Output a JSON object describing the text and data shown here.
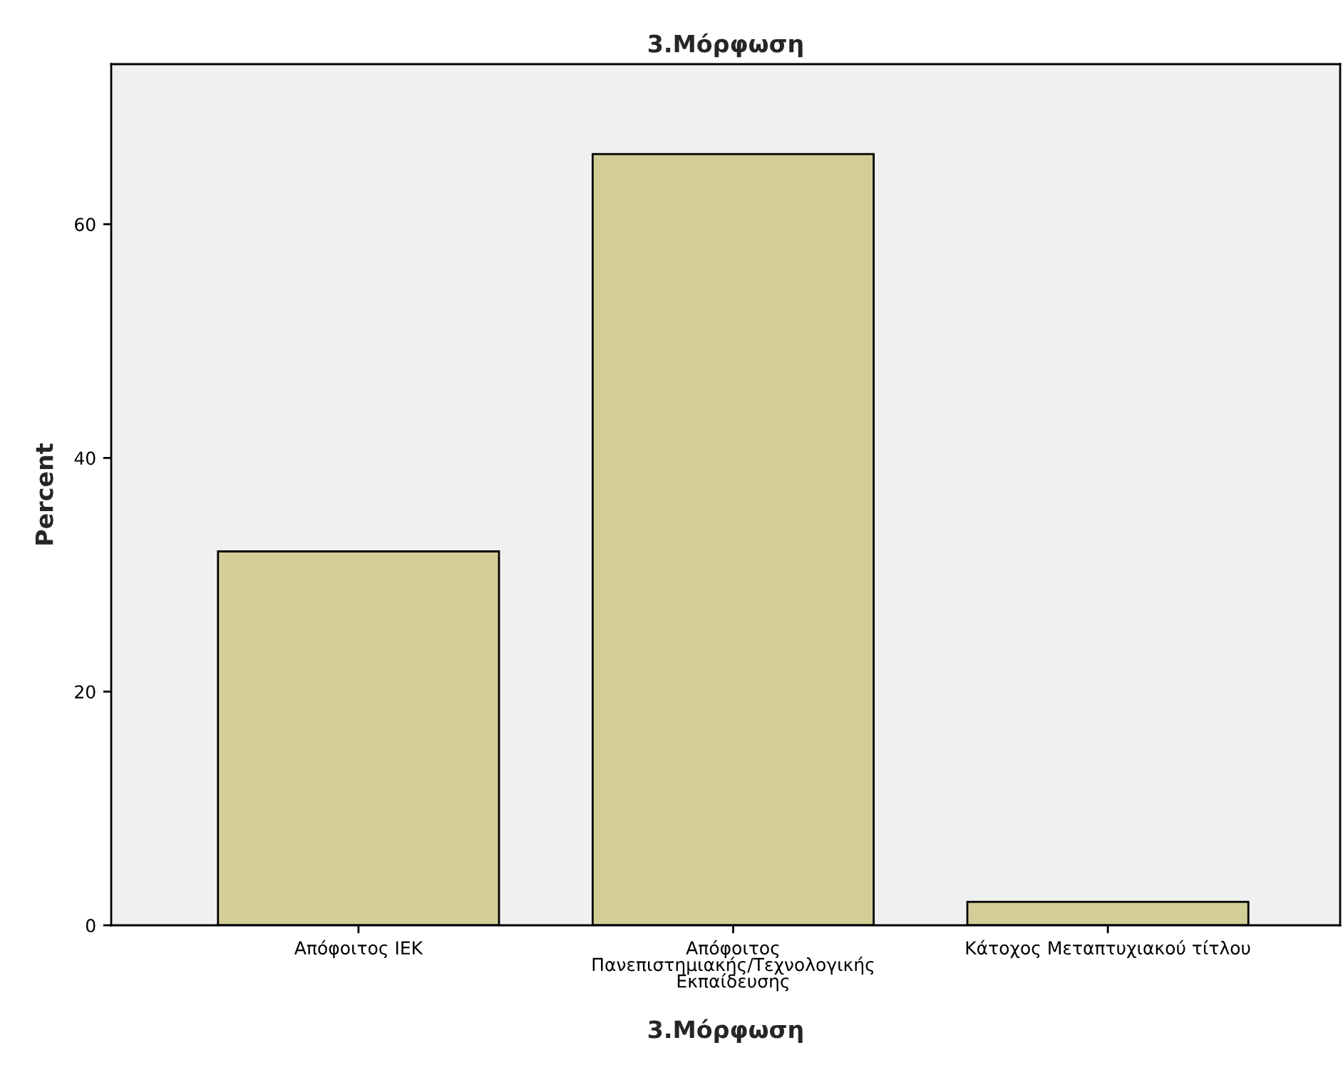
{
  "chart_data": {
    "type": "bar",
    "title": "3.Μόρφωση",
    "xlabel": "3.Μόρφωση",
    "ylabel": "Percent",
    "categories": [
      "Απόφοιτος ΙΕΚ",
      "Απόφοιτος\nΠανεπιστημιακής/Τεχνολογικής\nΕκπαίδευσης",
      "Κάτοχος Μεταπτυχιακού τίτλου"
    ],
    "values": [
      32,
      66,
      2
    ],
    "color": "#d3ce97",
    "ylim": [
      0,
      73.7
    ],
    "yticks": [
      0,
      20,
      40,
      60
    ],
    "grid": false,
    "legend": false
  }
}
